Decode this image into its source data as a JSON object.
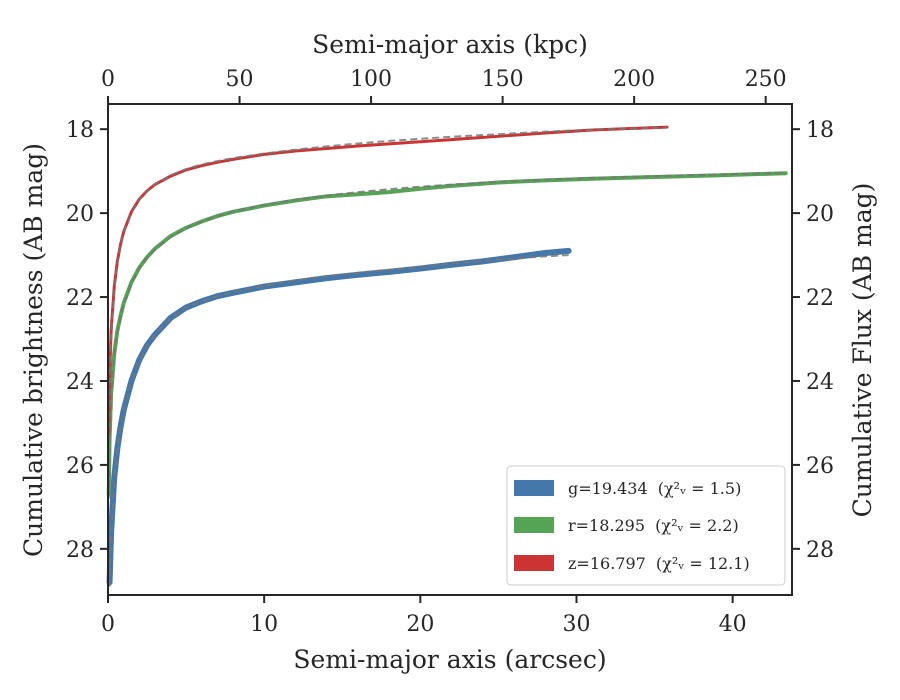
{
  "chart_data": {
    "type": "line",
    "xlabel": "Semi-major axis (arcsec)",
    "ylabel": "Cumulative brightness (AB mag)",
    "top_xlabel": "Semi-major axis (kpc)",
    "right_ylabel": "Cumulative Flux (AB mag)",
    "xlim": [
      0,
      43.8
    ],
    "top_xlim": [
      0,
      260
    ],
    "ylim": [
      29.1,
      17.4
    ],
    "y_inverted": true,
    "x_ticks": [
      0,
      10,
      20,
      30,
      40
    ],
    "top_x_ticks": [
      0,
      50,
      100,
      150,
      200,
      250
    ],
    "y_ticks": [
      18,
      20,
      22,
      24,
      26,
      28
    ],
    "legend_position": "lower-right",
    "grid": false,
    "series": [
      {
        "name": "g",
        "legend_label": "g=19.434",
        "legend_chi": "(χ²ᵥ = 1.5)",
        "color": "#4477aa",
        "fit_color": "#777777",
        "x": [
          0.1,
          0.2,
          0.4,
          0.6,
          0.8,
          1.0,
          1.5,
          2.0,
          2.5,
          3.0,
          4.0,
          5.0,
          6.0,
          7.0,
          8.0,
          10.0,
          12.0,
          14.0,
          16.0,
          18.0,
          20.0,
          22.0,
          24.0,
          26.0,
          28.0,
          29.5
        ],
        "values": [
          28.8,
          27.6,
          26.3,
          25.6,
          25.1,
          24.7,
          24.0,
          23.5,
          23.15,
          22.9,
          22.5,
          22.25,
          22.1,
          21.98,
          21.9,
          21.75,
          21.65,
          21.55,
          21.47,
          21.4,
          21.32,
          21.23,
          21.15,
          21.05,
          20.95,
          20.9
        ],
        "fit": [
          28.9,
          27.7,
          26.4,
          25.65,
          25.1,
          24.7,
          24.0,
          23.52,
          23.17,
          22.9,
          22.5,
          22.25,
          22.1,
          21.98,
          21.88,
          21.73,
          21.6,
          21.5,
          21.42,
          21.35,
          21.28,
          21.2,
          21.14,
          21.08,
          21.03,
          21.0
        ]
      },
      {
        "name": "r",
        "legend_label": "r=18.295",
        "legend_chi": "(χ²ᵥ = 2.2)",
        "color": "#55a455",
        "fit_color": "#777777",
        "x": [
          0.05,
          0.1,
          0.2,
          0.4,
          0.6,
          0.8,
          1.0,
          1.5,
          2.0,
          2.5,
          3.0,
          4.0,
          5.0,
          6.0,
          7.0,
          8.0,
          10.0,
          12.0,
          14.0,
          16.0,
          18.0,
          20.0,
          22.0,
          25.0,
          28.0,
          31.0,
          35.0,
          39.0,
          43.4
        ],
        "values": [
          26.7,
          25.4,
          24.3,
          23.35,
          22.8,
          22.45,
          22.15,
          21.65,
          21.3,
          21.05,
          20.85,
          20.55,
          20.35,
          20.2,
          20.07,
          19.97,
          19.82,
          19.7,
          19.6,
          19.55,
          19.5,
          19.42,
          19.35,
          19.27,
          19.22,
          19.18,
          19.14,
          19.1,
          19.05
        ],
        "fit": [
          26.8,
          25.5,
          24.4,
          23.4,
          22.85,
          22.48,
          22.18,
          21.67,
          21.32,
          21.07,
          20.87,
          20.57,
          20.36,
          20.2,
          20.07,
          19.96,
          19.8,
          19.68,
          19.58,
          19.5,
          19.43,
          19.37,
          19.32,
          19.25,
          19.2,
          19.16,
          19.12,
          19.08,
          19.04
        ]
      },
      {
        "name": "z",
        "legend_label": "z=16.797",
        "legend_chi": "(χ²ᵥ = 12.1)",
        "color": "#cc3333",
        "fit_color": "#777777",
        "x": [
          0.05,
          0.1,
          0.2,
          0.4,
          0.6,
          0.8,
          1.0,
          1.5,
          2.0,
          2.5,
          3.0,
          4.0,
          5.0,
          6.0,
          7.0,
          8.0,
          10.0,
          12.0,
          14.0,
          16.0,
          18.0,
          20.0,
          22.0,
          25.0,
          28.0,
          31.0,
          35.8
        ],
        "values": [
          25.3,
          24.0,
          22.8,
          21.75,
          21.15,
          20.75,
          20.45,
          19.97,
          19.67,
          19.47,
          19.32,
          19.12,
          18.97,
          18.87,
          18.79,
          18.72,
          18.6,
          18.52,
          18.46,
          18.4,
          18.35,
          18.3,
          18.25,
          18.17,
          18.09,
          18.02,
          17.95
        ],
        "fit": [
          25.4,
          24.1,
          22.9,
          21.8,
          21.2,
          20.78,
          20.47,
          19.99,
          19.68,
          19.47,
          19.31,
          19.1,
          18.95,
          18.84,
          18.76,
          18.69,
          18.58,
          18.49,
          18.41,
          18.34,
          18.28,
          18.23,
          18.18,
          18.12,
          18.06,
          18.01,
          17.96
        ]
      }
    ]
  }
}
